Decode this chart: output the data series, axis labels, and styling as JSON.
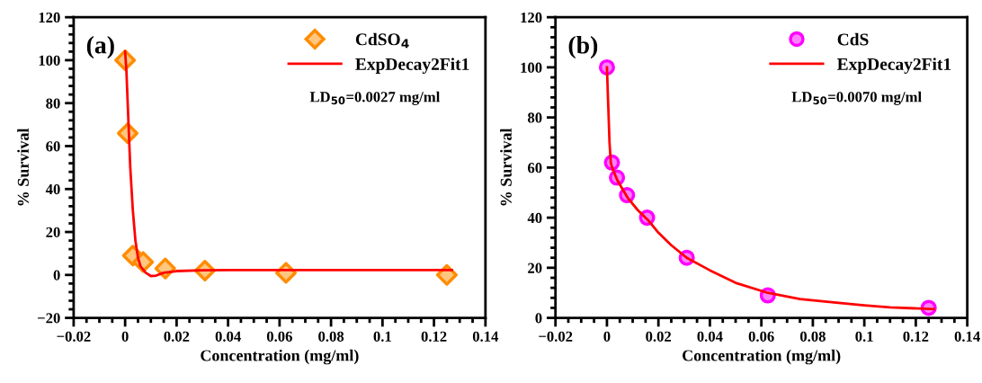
{
  "chart_data": [
    {
      "type": "scatter",
      "xlabel": "Concentration (mg/ml)",
      "ylabel": "% Survival",
      "xlim": [
        -0.02,
        0.14
      ],
      "ylim": [
        -20,
        120
      ],
      "xticks": [
        {
          "value": -0.02,
          "label": "−0.02"
        },
        0,
        0.02,
        0.04,
        0.06,
        0.08,
        0.1,
        0.12,
        0.14
      ],
      "yticks": [
        {
          "value": -20,
          "label": "−20"
        },
        0,
        20,
        40,
        60,
        80,
        100,
        120
      ],
      "legend": "top right",
      "grid": false,
      "annotations": [
        "(a)",
        "LD$_{50}$=0.0027 mg/ml"
      ],
      "series": [
        {
          "name": "CdSO$_{4}$",
          "marker": "diamond",
          "color": "#ff8c00",
          "x": [
            0,
            0.001,
            0.003,
            0.007,
            0.0156,
            0.031,
            0.0625,
            0.125
          ],
          "values": [
            100,
            66,
            9,
            6,
            3,
            2,
            1,
            0
          ]
        },
        {
          "name": "ExpDecay2Fit1",
          "type": "line",
          "marker": "none",
          "color": "#ff0000",
          "x": [
            0,
            0.0005,
            0.001,
            0.0015,
            0.002,
            0.003,
            0.004,
            0.005,
            0.006,
            0.008,
            0.01,
            0.012,
            0.015,
            0.02,
            0.03,
            0.05,
            0.127
          ],
          "values": [
            104,
            95,
            80,
            65,
            50,
            30,
            16,
            8,
            4,
            1,
            -0.5,
            -0.3,
            1,
            1.8,
            2.2,
            2.3,
            2.3
          ]
        }
      ]
    },
    {
      "type": "scatter",
      "xlabel": "Concentration (mg/ml)",
      "ylabel": "% Survival",
      "xlim": [
        -0.02,
        0.14
      ],
      "ylim": [
        0,
        120
      ],
      "xticks": [
        {
          "value": -0.02,
          "label": "−0.02"
        },
        0,
        0.02,
        0.04,
        0.06,
        0.08,
        0.1,
        0.12,
        0.14
      ],
      "yticks": [
        0,
        20,
        40,
        60,
        80,
        100,
        120
      ],
      "legend": "top right",
      "grid": false,
      "annotations": [
        "(b)",
        "LD$_{50}$=0.0070 mg/ml"
      ],
      "series": [
        {
          "name": "CdS",
          "marker": "circle",
          "color": "#ff00ff",
          "x": [
            0,
            0.00195,
            0.0039,
            0.0078,
            0.0156,
            0.031,
            0.0625,
            0.125
          ],
          "values": [
            100,
            62,
            56,
            49,
            40,
            24,
            9,
            4
          ]
        },
        {
          "name": "ExpDecay2Fit1",
          "type": "line",
          "marker": "none",
          "color": "#ff0000",
          "x": [
            0,
            0.0005,
            0.001,
            0.0015,
            0.002,
            0.004,
            0.008,
            0.012,
            0.016,
            0.02,
            0.025,
            0.031,
            0.04,
            0.05,
            0.0625,
            0.075,
            0.09,
            0.1,
            0.11,
            0.127
          ],
          "values": [
            100,
            85,
            70,
            62,
            60,
            55,
            48,
            43,
            39,
            34,
            29,
            24,
            19,
            14,
            10,
            7.5,
            6,
            5,
            4.2,
            3.5
          ]
        }
      ]
    }
  ]
}
